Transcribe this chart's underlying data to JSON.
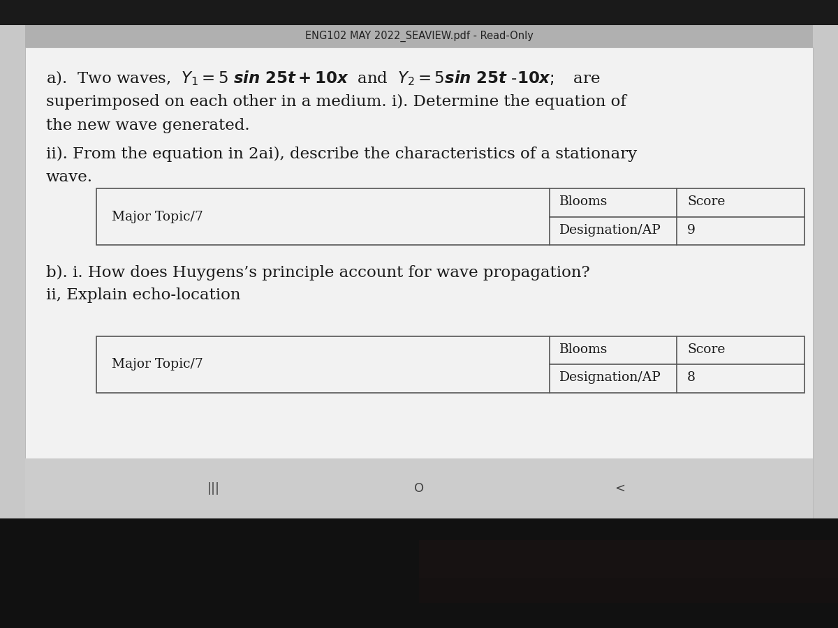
{
  "bg_top": "#1a1a1a",
  "bg_main": "#c8c8c8",
  "bg_bottom_dark": "#111111",
  "content_bg": "#e8e8e8",
  "white_area_bg": "#f0f0f0",
  "header_text": "ENG102 MAY 2022_SEAVIEW.pdf - Read-Only",
  "line1": "a).  Two waves,  Y₁ = 5 sin 25t + 10x  and  Y₂ = 5sin 25t -10x;   are",
  "line2": "superimposed on each other in a medium. i). Determine the equation of",
  "line3": "the new wave generated.",
  "line4": "ii). From the equation in 2ai), describe the characteristics of a stationary",
  "line5": "wave.",
  "table1_col1": "Major Topic/7",
  "table1_col2a": "Blooms",
  "table1_col2b": "Designation/AP",
  "table1_col3a": "Score",
  "table1_score": "9",
  "para_b_i": "b). i. How does Huygens’s principle account for wave propagation?",
  "para_b_ii": "ii, Explain echo-location",
  "table2_col1": "Major Topic/7",
  "table2_col2a": "Blooms",
  "table2_col2b": "Designation/AP",
  "table2_col3a": "Score",
  "table2_score": "8",
  "nav_left": "|||",
  "nav_mid": "O",
  "nav_right": "<",
  "text_color": "#1a1a1a",
  "border_color": "#555555",
  "font_size_body": 16.5,
  "font_size_table": 13.5,
  "font_size_nav": 13,
  "font_size_header": 10.5
}
